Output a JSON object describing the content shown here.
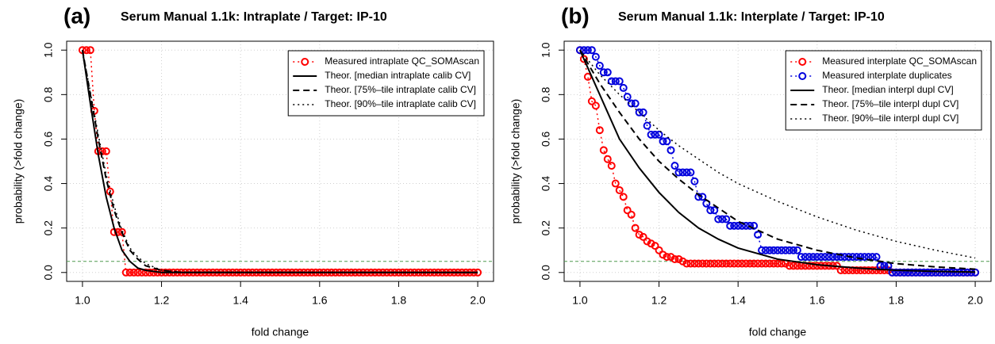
{
  "chart_data": [
    {
      "type": "line",
      "label": "(a)",
      "title": "Serum Manual 1.1k: Intraplate / Target: IP-10",
      "xlabel": "fold change",
      "ylabel": "probability (>fold change)",
      "xlim": [
        0.96,
        2.04
      ],
      "ylim": [
        -0.04,
        1.04
      ],
      "xticks": [
        {
          "value": 1,
          "label": "1.0"
        },
        1.2,
        1.4,
        1.6,
        1.8,
        {
          "value": 2,
          "label": "2.0"
        }
      ],
      "yticks": [
        {
          "value": 0,
          "label": "0.0"
        },
        0.2,
        0.4,
        0.6,
        0.8,
        {
          "value": 1,
          "label": "1.0"
        }
      ],
      "grid": true,
      "legend": "top-right",
      "threshold": {
        "value": 0.05,
        "color": "#4f9a4f"
      },
      "x": [
        1,
        1.01,
        1.02,
        1.03,
        1.04,
        1.05,
        1.06,
        1.07,
        1.08,
        1.09,
        1.1,
        1.11,
        1.12,
        1.13,
        1.14,
        1.15,
        1.16,
        1.17,
        1.18,
        1.19,
        1.2,
        1.21,
        1.22,
        1.23,
        1.24,
        1.25,
        1.26,
        1.27,
        1.28,
        1.29,
        1.3,
        1.31,
        1.32,
        1.33,
        1.34,
        1.35,
        1.36,
        1.37,
        1.38,
        1.39,
        1.4,
        1.41,
        1.42,
        1.43,
        1.44,
        1.45,
        1.46,
        1.47,
        1.48,
        1.49,
        1.5,
        1.51,
        1.52,
        1.53,
        1.54,
        1.55,
        1.56,
        1.57,
        1.58,
        1.59,
        1.6,
        1.61,
        1.62,
        1.63,
        1.64,
        1.65,
        1.66,
        1.67,
        1.68,
        1.69,
        1.7,
        1.71,
        1.72,
        1.73,
        1.74,
        1.75,
        1.76,
        1.77,
        1.78,
        1.79,
        1.8,
        1.81,
        1.82,
        1.83,
        1.84,
        1.85,
        1.86,
        1.87,
        1.88,
        1.89,
        1.9,
        1.91,
        1.92,
        1.93,
        1.94,
        1.95,
        1.96,
        1.97,
        1.98,
        1.99,
        2
      ],
      "series": [
        {
          "name": "Measured intraplate QC_SOMAscan",
          "color": "#ff0000",
          "marker": "circle",
          "dash": "dotted",
          "values": [
            1,
            1,
            1,
            0.727,
            0.545,
            0.545,
            0.545,
            0.364,
            0.182,
            0.182,
            0.182,
            0,
            0,
            0,
            0,
            0,
            0,
            0,
            0,
            0,
            0,
            0,
            0,
            0,
            0,
            0,
            0,
            0,
            0,
            0,
            0,
            0,
            0,
            0,
            0,
            0,
            0,
            0,
            0,
            0,
            0,
            0,
            0,
            0,
            0,
            0,
            0,
            0,
            0,
            0,
            0,
            0,
            0,
            0,
            0,
            0,
            0,
            0,
            0,
            0,
            0,
            0,
            0,
            0,
            0,
            0,
            0,
            0,
            0,
            0,
            0,
            0,
            0,
            0,
            0,
            0,
            0,
            0,
            0,
            0,
            0,
            0,
            0,
            0,
            0,
            0,
            0,
            0,
            0,
            0,
            0,
            0,
            0,
            0,
            0,
            0,
            0,
            0,
            0,
            0,
            0
          ]
        },
        {
          "name": "Theor. [median intraplate calib CV]",
          "color": "#000000",
          "dash": "solid",
          "x": [
            1,
            1.02,
            1.04,
            1.06,
            1.08,
            1.1,
            1.12,
            1.14,
            1.16,
            1.2,
            2
          ],
          "values": [
            1,
            0.76,
            0.53,
            0.34,
            0.2,
            0.1,
            0.05,
            0.02,
            0.01,
            0,
            0
          ]
        },
        {
          "name": "Theor. [75%–tile intraplate calib CV]",
          "color": "#000000",
          "dash": "dashed",
          "x": [
            1,
            1.02,
            1.04,
            1.06,
            1.08,
            1.1,
            1.12,
            1.14,
            1.16,
            1.2,
            1.25,
            2
          ],
          "values": [
            1,
            0.8,
            0.6,
            0.42,
            0.28,
            0.18,
            0.1,
            0.06,
            0.03,
            0.01,
            0,
            0
          ]
        },
        {
          "name": "Theor. [90%–tile intraplate calib CV]",
          "color": "#000000",
          "dash": "dotted",
          "x": [
            1,
            1.02,
            1.04,
            1.06,
            1.08,
            1.1,
            1.12,
            1.14,
            1.16,
            1.2,
            1.25,
            2
          ],
          "values": [
            1,
            0.81,
            0.62,
            0.44,
            0.3,
            0.19,
            0.11,
            0.07,
            0.04,
            0.01,
            0.002,
            0
          ]
        }
      ]
    },
    {
      "type": "line",
      "label": "(b)",
      "title": "Serum Manual 1.1k: Interplate / Target: IP-10",
      "xlabel": "fold change",
      "ylabel": "probability (>fold change)",
      "xlim": [
        0.96,
        2.04
      ],
      "ylim": [
        -0.04,
        1.04
      ],
      "xticks": [
        {
          "value": 1,
          "label": "1.0"
        },
        1.2,
        1.4,
        1.6,
        1.8,
        {
          "value": 2,
          "label": "2.0"
        }
      ],
      "yticks": [
        {
          "value": 0,
          "label": "0.0"
        },
        0.2,
        0.4,
        0.6,
        0.8,
        {
          "value": 1,
          "label": "1.0"
        }
      ],
      "grid": true,
      "legend": "top-right",
      "threshold": {
        "value": 0.05,
        "color": "#4f9a4f"
      },
      "x": [
        1,
        1.01,
        1.02,
        1.03,
        1.04,
        1.05,
        1.06,
        1.07,
        1.08,
        1.09,
        1.1,
        1.11,
        1.12,
        1.13,
        1.14,
        1.15,
        1.16,
        1.17,
        1.18,
        1.19,
        1.2,
        1.21,
        1.22,
        1.23,
        1.24,
        1.25,
        1.26,
        1.27,
        1.28,
        1.29,
        1.3,
        1.31,
        1.32,
        1.33,
        1.34,
        1.35,
        1.36,
        1.37,
        1.38,
        1.39,
        1.4,
        1.41,
        1.42,
        1.43,
        1.44,
        1.45,
        1.46,
        1.47,
        1.48,
        1.49,
        1.5,
        1.51,
        1.52,
        1.53,
        1.54,
        1.55,
        1.56,
        1.57,
        1.58,
        1.59,
        1.6,
        1.61,
        1.62,
        1.63,
        1.64,
        1.65,
        1.66,
        1.67,
        1.68,
        1.69,
        1.7,
        1.71,
        1.72,
        1.73,
        1.74,
        1.75,
        1.76,
        1.77,
        1.78,
        1.79,
        1.8,
        1.81,
        1.82,
        1.83,
        1.84,
        1.85,
        1.86,
        1.87,
        1.88,
        1.89,
        1.9,
        1.91,
        1.92,
        1.93,
        1.94,
        1.95,
        1.96,
        1.97,
        1.98,
        1.99,
        2
      ],
      "series": [
        {
          "name": "Measured interplate QC_SOMAscan",
          "color": "#ff0000",
          "marker": "circle",
          "dash": "dotted",
          "values": [
            1,
            0.96,
            0.88,
            0.77,
            0.75,
            0.64,
            0.55,
            0.51,
            0.48,
            0.4,
            0.37,
            0.34,
            0.28,
            0.26,
            0.2,
            0.17,
            0.16,
            0.14,
            0.13,
            0.12,
            0.1,
            0.08,
            0.07,
            0.07,
            0.06,
            0.06,
            0.05,
            0.04,
            0.04,
            0.04,
            0.04,
            0.04,
            0.04,
            0.04,
            0.04,
            0.04,
            0.04,
            0.04,
            0.04,
            0.04,
            0.04,
            0.04,
            0.04,
            0.04,
            0.04,
            0.04,
            0.04,
            0.04,
            0.04,
            0.04,
            0.04,
            0.04,
            0.04,
            0.03,
            0.03,
            0.03,
            0.03,
            0.03,
            0.03,
            0.03,
            0.03,
            0.03,
            0.03,
            0.03,
            0.03,
            0.03,
            0.01,
            0.01,
            0.01,
            0.01,
            0.01,
            0.01,
            0.01,
            0.01,
            0.01,
            0.01,
            0.01,
            0.01,
            0.01,
            0,
            0,
            0,
            0,
            0,
            0,
            0,
            0,
            0,
            0,
            0,
            0,
            0,
            0,
            0,
            0,
            0,
            0,
            0,
            0,
            0,
            0
          ]
        },
        {
          "name": "Measured interplate duplicates",
          "color": "#0000dd",
          "marker": "circle",
          "dash": "dotted",
          "values": [
            1,
            1,
            1,
            1,
            0.97,
            0.93,
            0.9,
            0.9,
            0.86,
            0.86,
            0.86,
            0.83,
            0.79,
            0.76,
            0.76,
            0.72,
            0.72,
            0.66,
            0.62,
            0.62,
            0.62,
            0.59,
            0.59,
            0.55,
            0.48,
            0.45,
            0.45,
            0.45,
            0.45,
            0.41,
            0.34,
            0.34,
            0.31,
            0.28,
            0.28,
            0.24,
            0.24,
            0.24,
            0.21,
            0.21,
            0.21,
            0.21,
            0.21,
            0.21,
            0.21,
            0.17,
            0.1,
            0.1,
            0.1,
            0.1,
            0.1,
            0.1,
            0.1,
            0.1,
            0.1,
            0.1,
            0.07,
            0.07,
            0.07,
            0.07,
            0.07,
            0.07,
            0.07,
            0.07,
            0.07,
            0.07,
            0.07,
            0.07,
            0.07,
            0.07,
            0.07,
            0.07,
            0.07,
            0.07,
            0.07,
            0.07,
            0.03,
            0.03,
            0.03,
            0,
            0,
            0,
            0,
            0,
            0,
            0,
            0,
            0,
            0,
            0,
            0,
            0,
            0,
            0,
            0,
            0,
            0,
            0,
            0,
            0,
            0
          ]
        },
        {
          "name": "Theor. [median interpl dupl CV]",
          "color": "#000000",
          "dash": "solid",
          "x": [
            1,
            1.05,
            1.1,
            1.15,
            1.2,
            1.25,
            1.3,
            1.35,
            1.4,
            1.5,
            1.6,
            1.7,
            1.8,
            1.9,
            2
          ],
          "values": [
            1,
            0.8,
            0.6,
            0.47,
            0.36,
            0.27,
            0.2,
            0.15,
            0.11,
            0.06,
            0.035,
            0.02,
            0.01,
            0.005,
            0.002
          ]
        },
        {
          "name": "Theor. [75%–tile interpl dupl CV]",
          "color": "#000000",
          "dash": "dashed",
          "x": [
            1,
            1.05,
            1.1,
            1.15,
            1.2,
            1.25,
            1.3,
            1.35,
            1.4,
            1.5,
            1.6,
            1.7,
            1.8,
            1.9,
            2
          ],
          "values": [
            1,
            0.85,
            0.72,
            0.6,
            0.5,
            0.42,
            0.35,
            0.29,
            0.23,
            0.15,
            0.1,
            0.065,
            0.04,
            0.025,
            0.015
          ]
        },
        {
          "name": "Theor. [90%–tile interpl dupl CV]",
          "color": "#000000",
          "dash": "dotted",
          "x": [
            1,
            1.05,
            1.1,
            1.15,
            1.2,
            1.25,
            1.3,
            1.35,
            1.4,
            1.5,
            1.6,
            1.7,
            1.8,
            1.9,
            2
          ],
          "values": [
            1,
            0.89,
            0.8,
            0.72,
            0.64,
            0.57,
            0.51,
            0.45,
            0.4,
            0.32,
            0.25,
            0.19,
            0.14,
            0.1,
            0.065
          ]
        }
      ]
    }
  ]
}
